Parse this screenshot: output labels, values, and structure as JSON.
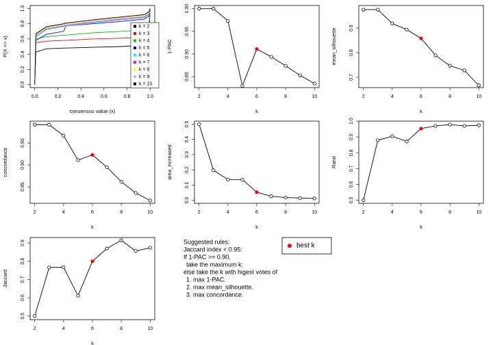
{
  "chart_data": [
    {
      "type": "line",
      "xlabel": "consensus value (x)",
      "ylabel": "P(X <= x)",
      "legend": "bottomright",
      "x": [
        0,
        0.01,
        0.1,
        0.25,
        0.27,
        0.5,
        0.75,
        0.95,
        0.99,
        1
      ],
      "xlim": [
        -0.04,
        1.04
      ],
      "ylim": [
        -0.04,
        1.04
      ],
      "xticks": [
        {
          "value": 0,
          "label": "0.0"
        },
        0.2,
        0.4,
        0.6,
        0.8,
        {
          "value": 1,
          "label": "1.0"
        }
      ],
      "yticks": [
        {
          "value": 0,
          "label": "0.0"
        },
        0.2,
        0.4,
        0.6,
        0.8,
        {
          "value": 1,
          "label": "1.0"
        }
      ],
      "series": [
        {
          "name": "k = 2",
          "color": "#000000",
          "values": [
            0,
            0.43,
            0.47,
            0.48,
            0.48,
            0.49,
            0.5,
            0.52,
            0.6,
            1
          ]
        },
        {
          "name": "k = 3",
          "color": "#ff0000",
          "values": [
            0,
            0.55,
            0.57,
            0.58,
            0.58,
            0.6,
            0.61,
            0.62,
            0.7,
            1
          ]
        },
        {
          "name": "k = 4",
          "color": "#00cd00",
          "values": [
            0,
            0.6,
            0.63,
            0.65,
            0.65,
            0.68,
            0.7,
            0.72,
            0.8,
            1
          ]
        },
        {
          "name": "k = 5",
          "color": "#0000ff",
          "values": [
            0,
            0.58,
            0.66,
            0.7,
            0.77,
            0.8,
            0.83,
            0.86,
            0.9,
            1
          ]
        },
        {
          "name": "k = 6",
          "color": "#00ffff",
          "values": [
            0,
            0.62,
            0.72,
            0.76,
            0.77,
            0.81,
            0.85,
            0.88,
            0.92,
            1
          ]
        },
        {
          "name": "k = 7",
          "color": "#ff00ff",
          "values": [
            0,
            0.64,
            0.73,
            0.77,
            0.78,
            0.82,
            0.86,
            0.89,
            0.93,
            1
          ]
        },
        {
          "name": "k = 8",
          "color": "#ffff00",
          "values": [
            0,
            0.65,
            0.74,
            0.78,
            0.79,
            0.83,
            0.87,
            0.9,
            0.94,
            1
          ]
        },
        {
          "name": "k = 9",
          "color": "#bebebe",
          "values": [
            0,
            0.66,
            0.75,
            0.79,
            0.8,
            0.84,
            0.88,
            0.91,
            0.95,
            1
          ]
        },
        {
          "name": "k = 10",
          "color": "#000000",
          "values": [
            0,
            0.67,
            0.76,
            0.8,
            0.81,
            0.85,
            0.89,
            0.92,
            0.96,
            1
          ]
        }
      ]
    },
    {
      "type": "line",
      "xlabel": "k",
      "ylabel": "1-PAC",
      "x": [
        2,
        3,
        4,
        5,
        6,
        7,
        8,
        9,
        10
      ],
      "values": [
        1.0,
        1.0,
        0.973,
        0.83,
        0.911,
        0.894,
        0.874,
        0.853,
        0.835
      ],
      "xlim": [
        1.68,
        10.32
      ],
      "ylim": [
        0.826,
        1.007
      ],
      "xticks": [
        2,
        4,
        6,
        8,
        10
      ],
      "yticks": [
        0.85,
        {
          "value": 0.9,
          "label": "0.90"
        },
        0.95,
        {
          "value": 1,
          "label": "1.00"
        }
      ]
    },
    {
      "type": "line",
      "xlabel": "k",
      "ylabel": "mean_silhouette",
      "x": [
        2,
        3,
        4,
        5,
        6,
        7,
        8,
        9,
        10
      ],
      "values": [
        0.975,
        0.975,
        0.919,
        0.894,
        0.858,
        0.789,
        0.747,
        0.728,
        0.667
      ],
      "xlim": [
        1.68,
        10.32
      ],
      "ylim": [
        0.658,
        0.992
      ],
      "xticks": [
        2,
        4,
        6,
        8,
        10
      ],
      "yticks": [
        0.7,
        0.8,
        0.9
      ]
    },
    {
      "type": "line",
      "xlabel": "k",
      "ylabel": "concordance",
      "x": [
        2,
        3,
        4,
        5,
        6,
        7,
        8,
        9,
        10
      ],
      "values": [
        0.992,
        0.992,
        0.967,
        0.911,
        0.923,
        0.895,
        0.862,
        0.836,
        0.819
      ],
      "xlim": [
        1.68,
        10.32
      ],
      "ylim": [
        0.8125,
        1.0
      ],
      "xticks": [
        2,
        4,
        6,
        8,
        10
      ],
      "yticks": [
        0.85,
        {
          "value": 0.9,
          "label": "0.90"
        },
        0.95
      ]
    },
    {
      "type": "line",
      "xlabel": "k",
      "ylabel": "area_increased",
      "x": [
        2,
        3,
        4,
        5,
        6,
        7,
        8,
        9,
        10
      ],
      "values": [
        0.5,
        0.197,
        0.136,
        0.136,
        0.053,
        0.026,
        0.018,
        0.015,
        0.012
      ],
      "xlim": [
        1.68,
        10.32
      ],
      "ylim": [
        -0.02,
        0.52
      ],
      "xticks": [
        2,
        4,
        6,
        8,
        10
      ],
      "yticks": [
        {
          "value": 0,
          "label": "0.0"
        },
        0.1,
        0.2,
        0.3,
        0.4,
        0.5
      ]
    },
    {
      "type": "line",
      "xlabel": "k",
      "ylabel": "Rand",
      "x": [
        2,
        3,
        4,
        5,
        6,
        7,
        8,
        9,
        10
      ],
      "values": [
        0.5,
        0.879,
        0.905,
        0.871,
        0.953,
        0.97,
        0.978,
        0.97,
        0.974
      ],
      "xlim": [
        1.68,
        10.32
      ],
      "ylim": [
        0.48,
        1.0
      ],
      "xticks": [
        2,
        4,
        6,
        8,
        10
      ],
      "yticks": [
        0.5,
        0.6,
        0.7,
        0.8,
        0.9,
        {
          "value": 1,
          "label": "1.0"
        }
      ]
    },
    {
      "type": "line",
      "xlabel": "k",
      "ylabel": "Jaccard",
      "x": [
        2,
        3,
        4,
        5,
        6,
        7,
        8,
        9,
        10
      ],
      "values": [
        0.5,
        0.766,
        0.767,
        0.611,
        0.8,
        0.87,
        0.915,
        0.856,
        0.874
      ],
      "xlim": [
        1.68,
        10.32
      ],
      "ylim": [
        0.48,
        0.93
      ],
      "xticks": [
        2,
        4,
        6,
        8,
        10
      ],
      "yticks": [
        0.5,
        0.6,
        0.7,
        0.8,
        0.9
      ]
    }
  ],
  "best_k": 6,
  "best_k_legend": {
    "label": "best k",
    "color": "#ff0000"
  },
  "rules": [
    "Suggested rules:",
    "Jaccard index < 0.95:",
    "If 1-PAC >= 0.90,",
    "take the maximum k;",
    "else take the k with higest votes of",
    "1. max 1-PAC.",
    "2. max mean_silhouette.",
    "3. max concordance."
  ]
}
